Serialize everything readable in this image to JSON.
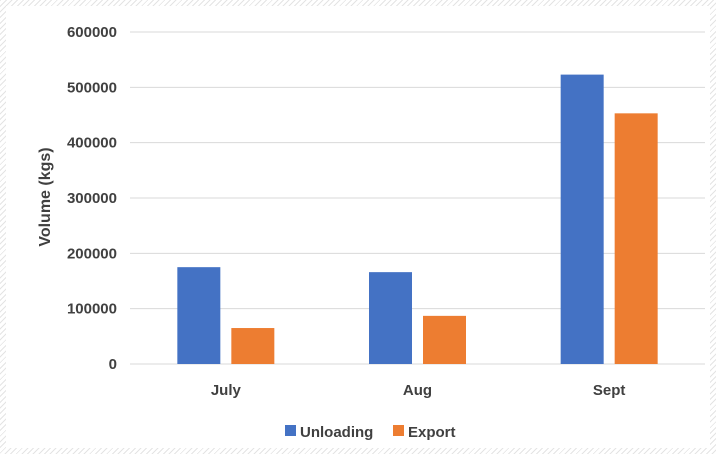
{
  "chart_data": {
    "type": "bar",
    "title": "",
    "xlabel": "",
    "ylabel": "Volume (kgs)",
    "categories": [
      "July",
      "Aug",
      "Sept"
    ],
    "series": [
      {
        "name": "Unloading",
        "color": "#4472C4",
        "values": [
          175000,
          166000,
          523000
        ]
      },
      {
        "name": "Export",
        "color": "#ED7D31",
        "values": [
          65000,
          87000,
          453000
        ]
      }
    ],
    "ylim": [
      0,
      600000
    ],
    "yticks": [
      "0",
      "100000",
      "200000",
      "300000",
      "400000",
      "500000",
      "600000"
    ],
    "grid": true,
    "legend_position": "bottom"
  }
}
